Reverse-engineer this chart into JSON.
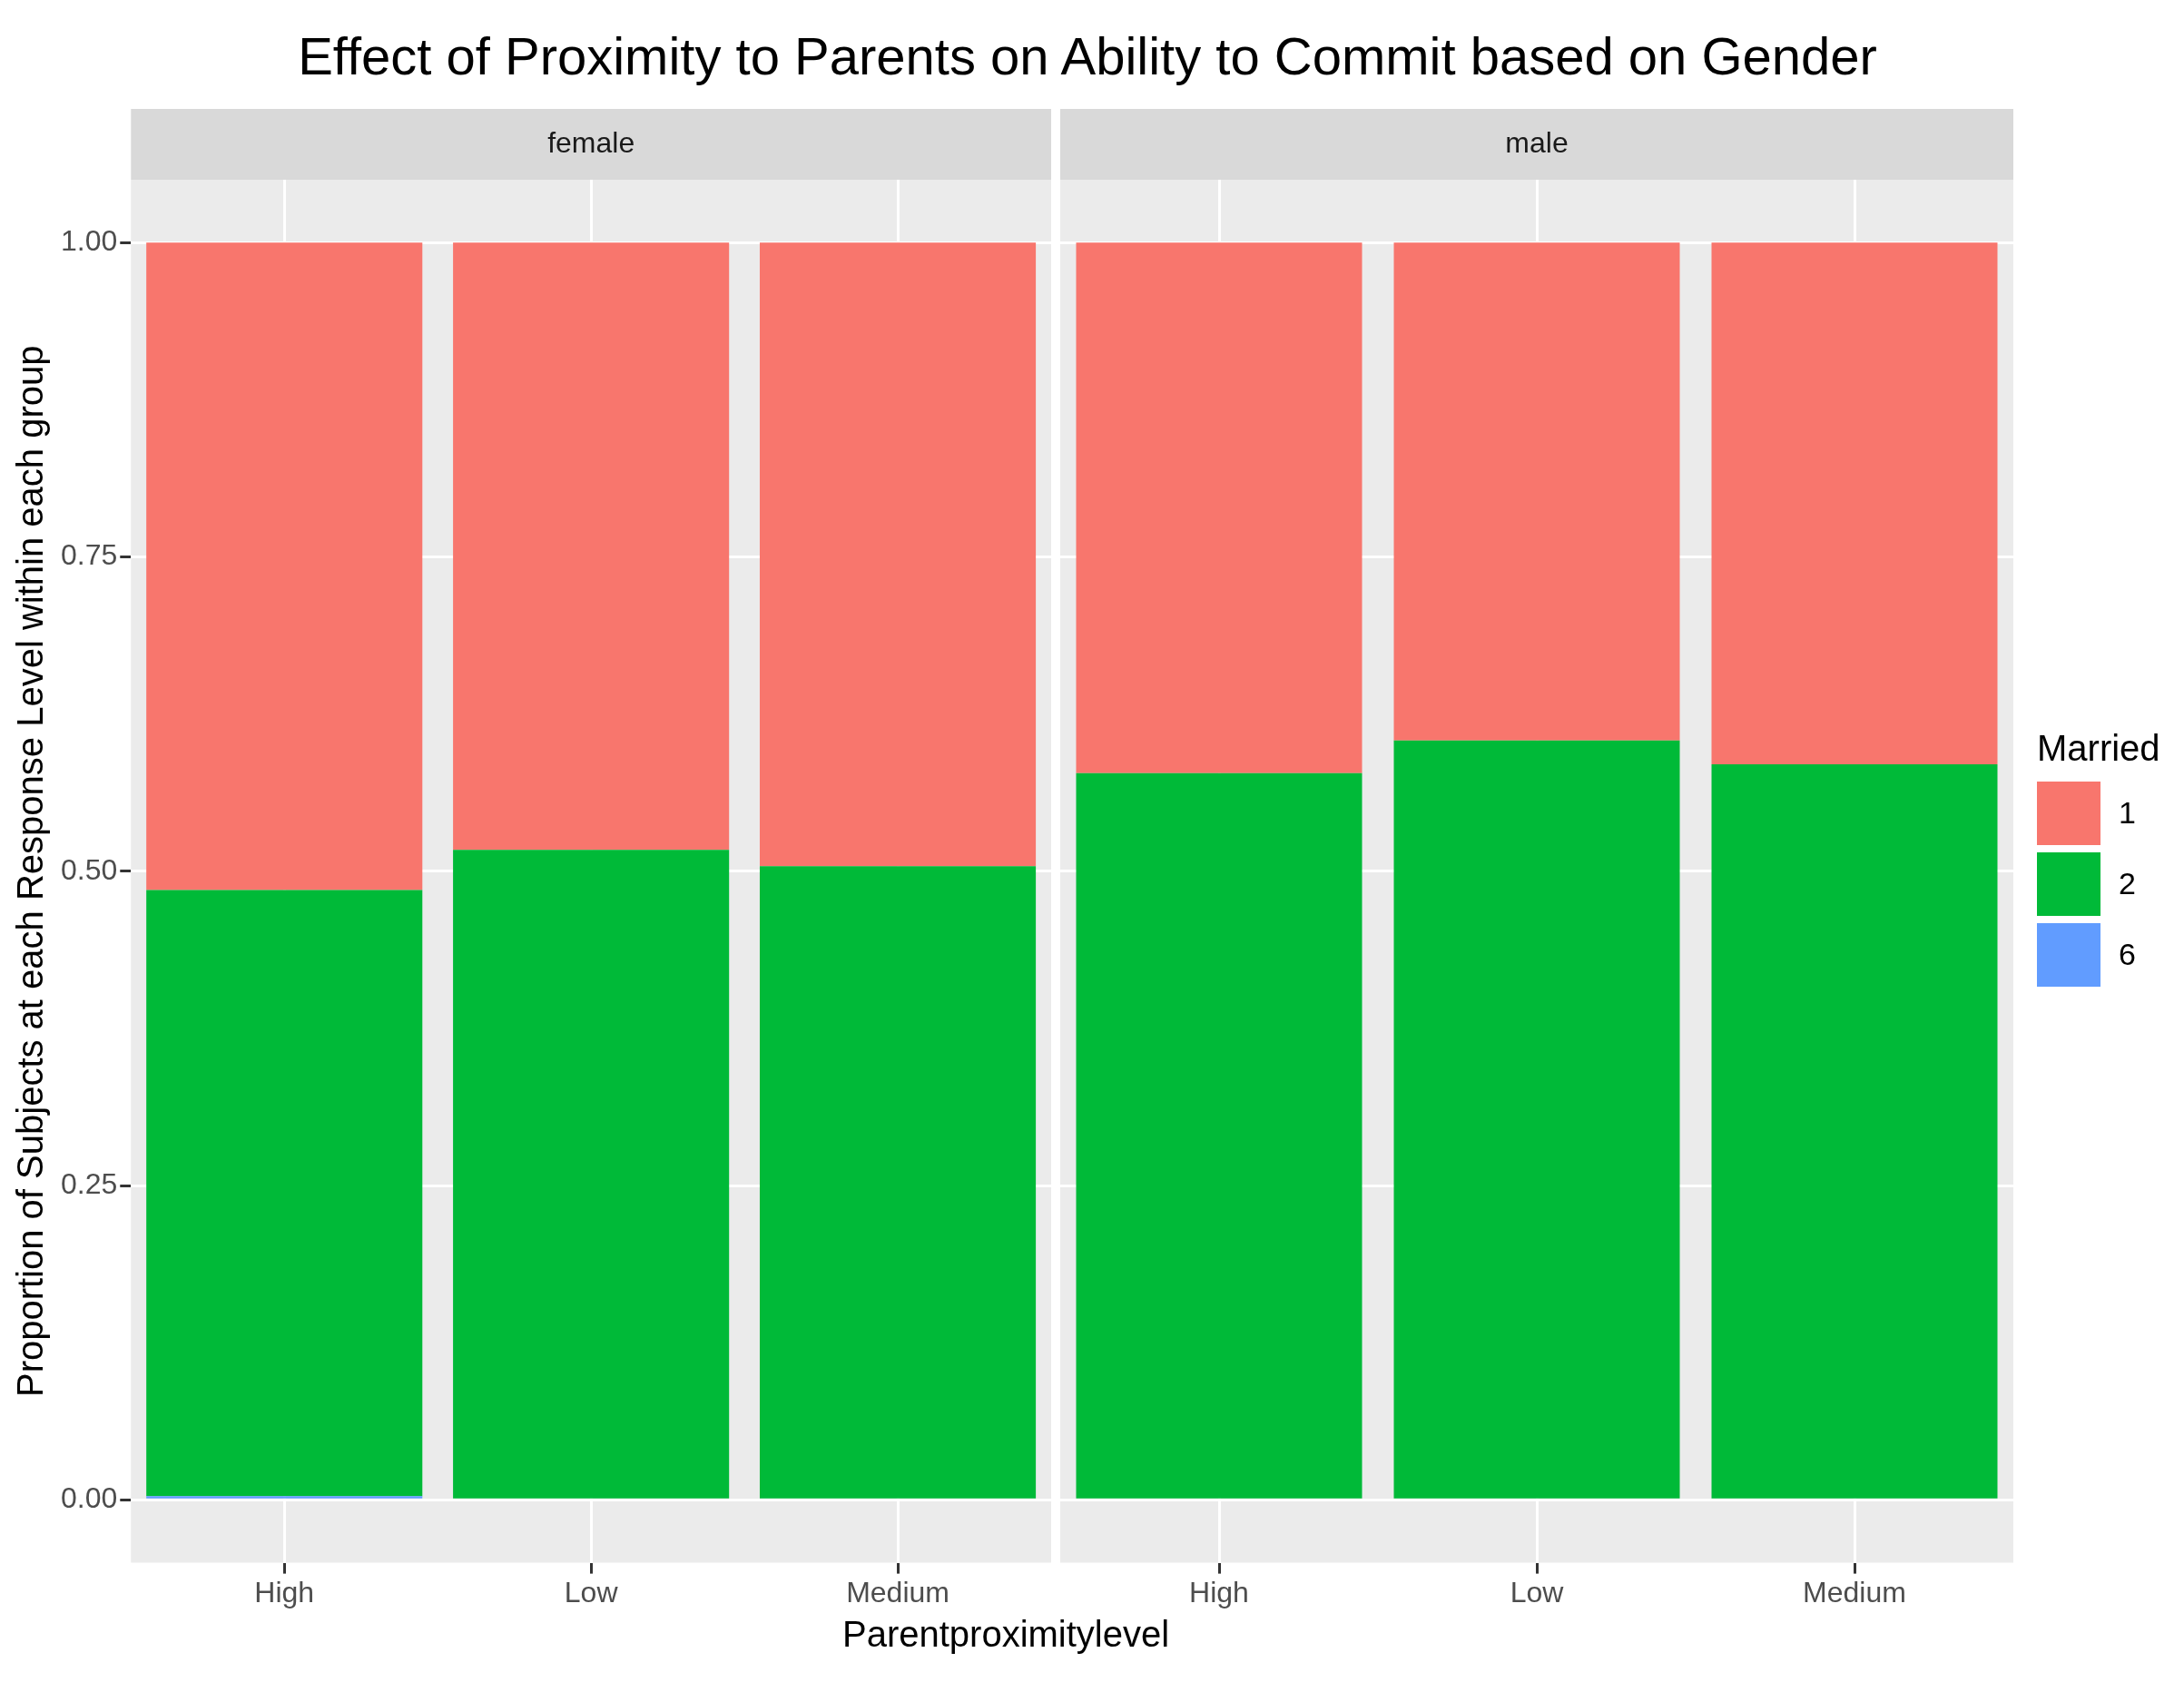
{
  "chart_data": [
    {
      "type": "bar",
      "title": "Effect of Proximity to Parents on Ability to Commit based on Gender",
      "subtitle": "female",
      "xlabel": "Parentproximitylevel",
      "ylabel": "Proportion of Subjects at each Response Level within each group",
      "categories": [
        "High",
        "Low",
        "Medium"
      ],
      "stacked": true,
      "grid": true,
      "legend": false,
      "ylim": [
        -0.05,
        1.05
      ],
      "yticks": [
        {
          "value": 0,
          "label": "0.00"
        },
        {
          "value": 0.25,
          "label": "0.25"
        },
        {
          "value": 0.5,
          "label": "0.50"
        },
        {
          "value": 0.75,
          "label": "0.75"
        },
        {
          "value": 1,
          "label": "1.00"
        }
      ],
      "series": [
        {
          "color": "#619cff",
          "values": [
            0.003,
            0,
            0
          ]
        },
        {
          "color": "#00ba38",
          "values": [
            0.482,
            0.517,
            0.504
          ]
        },
        {
          "color": "#f8766d",
          "values": [
            0.515,
            0.483,
            0.496
          ]
        }
      ]
    },
    {
      "type": "bar",
      "subtitle": "male",
      "categories": [
        "High",
        "Low",
        "Medium"
      ],
      "stacked": true,
      "grid": true,
      "legend": "right",
      "legend_title": "Married",
      "tick_labels": "x",
      "ylim": [
        -0.05,
        1.05
      ],
      "yticks": [
        {
          "value": 0,
          "label": null
        },
        {
          "value": 0.25,
          "label": null
        },
        {
          "value": 0.5,
          "label": null
        },
        {
          "value": 0.75,
          "label": null
        },
        {
          "value": 1,
          "label": null
        }
      ],
      "series": [
        {
          "name": "6",
          "color": "#619cff",
          "values": [
            0,
            0,
            0
          ]
        },
        {
          "name": "2",
          "color": "#00ba38",
          "values": [
            0.578,
            0.604,
            0.585
          ]
        },
        {
          "name": "1",
          "color": "#f8766d",
          "values": [
            0.422,
            0.396,
            0.415
          ]
        }
      ]
    }
  ]
}
